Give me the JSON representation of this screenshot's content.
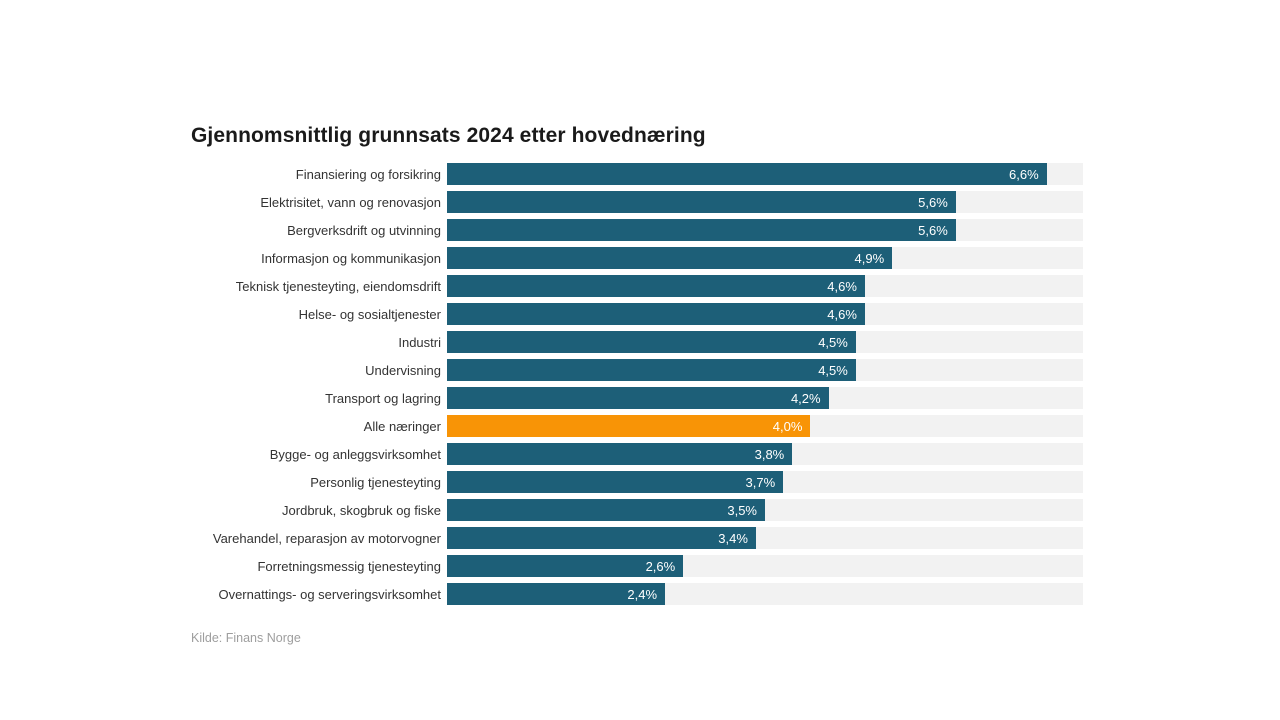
{
  "chart_data": {
    "type": "bar",
    "orientation": "horizontal",
    "title": "Gjennomsnittlig grunnsats 2024 etter hovednæring",
    "source": "Kilde: Finans Norge",
    "xlabel": "",
    "ylabel": "",
    "xlim": [
      0,
      7
    ],
    "unit": "%",
    "decimal_separator": ",",
    "grid": false,
    "legend": "none",
    "colors": {
      "bar": "#1d5f78",
      "highlight": "#f89406",
      "track": "#f2f2f2",
      "value_text": "#ffffff"
    },
    "highlight_index": 9,
    "highlight_category": "Alle næringer",
    "categories": [
      "Finansiering og forsikring",
      "Elektrisitet, vann og renovasjon",
      "Bergverksdrift og utvinning",
      "Informasjon og kommunikasjon",
      "Teknisk tjenesteyting, eiendomsdrift",
      "Helse- og sosialtjenester",
      "Industri",
      "Undervisning",
      "Transport og lagring",
      "Alle næringer",
      "Bygge- og anleggsvirksomhet",
      "Personlig tjenesteyting",
      "Jordbruk, skogbruk og fiske",
      "Varehandel, reparasjon av motorvogner",
      "Forretningsmessig tjenesteyting",
      "Overnattings- og serveringsvirksomhet"
    ],
    "values": [
      6.6,
      5.6,
      5.6,
      4.9,
      4.6,
      4.6,
      4.5,
      4.5,
      4.2,
      4.0,
      3.8,
      3.7,
      3.5,
      3.4,
      2.6,
      2.4
    ],
    "value_labels": [
      "6,6%",
      "5,6%",
      "5,6%",
      "4,9%",
      "4,6%",
      "4,6%",
      "4,5%",
      "4,5%",
      "4,2%",
      "4,0%",
      "3,8%",
      "3,7%",
      "3,5%",
      "3,4%",
      "2,6%",
      "2,4%"
    ]
  }
}
